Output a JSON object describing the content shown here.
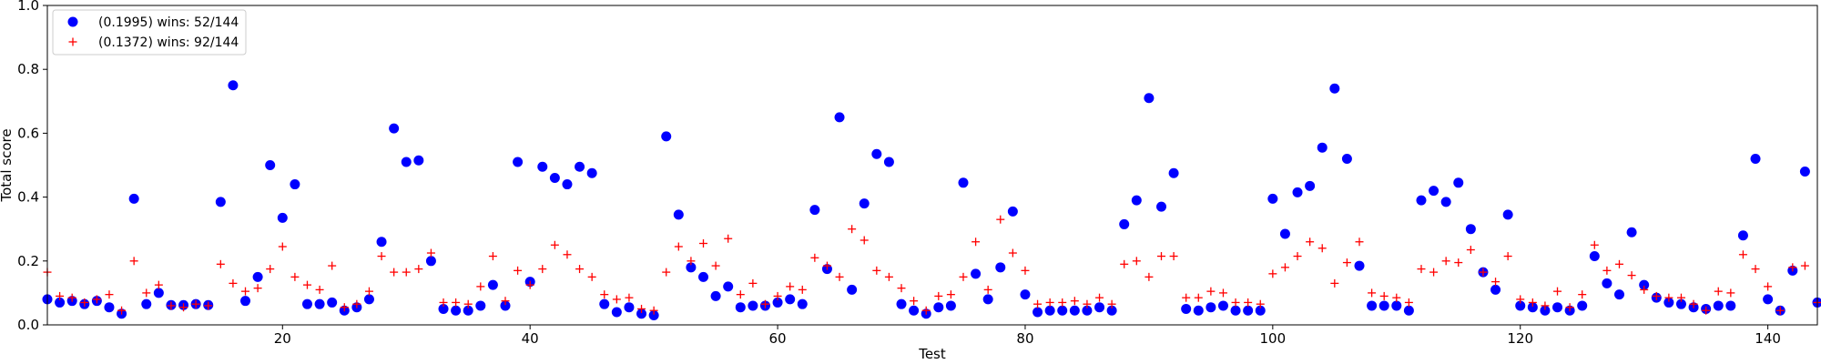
{
  "chart_data": {
    "type": "scatter",
    "title": "",
    "xlabel": "Test",
    "ylabel": "Total score",
    "xlim": [
      1,
      144
    ],
    "ylim": [
      0,
      1.0
    ],
    "xticks": [
      20,
      40,
      60,
      80,
      100,
      120,
      140
    ],
    "yticks": [
      0.0,
      0.2,
      0.4,
      0.6,
      0.8,
      1.0
    ],
    "ytick_labels": [
      "0.0",
      "0.2",
      "0.4",
      "0.6",
      "0.8",
      "1.0"
    ],
    "grid": false,
    "legend_position": "top-left",
    "series": [
      {
        "name": "(0.1995) wins: 52/144",
        "marker": "circle",
        "color": "#0000ff",
        "x": [
          1,
          2,
          3,
          4,
          5,
          6,
          7,
          8,
          9,
          10,
          11,
          12,
          13,
          14,
          15,
          16,
          17,
          18,
          19,
          20,
          21,
          22,
          23,
          24,
          25,
          26,
          27,
          28,
          29,
          30,
          31,
          32,
          33,
          34,
          35,
          36,
          37,
          38,
          39,
          40,
          41,
          42,
          43,
          44,
          45,
          46,
          47,
          48,
          49,
          50,
          51,
          52,
          53,
          54,
          55,
          56,
          57,
          58,
          59,
          60,
          61,
          62,
          63,
          64,
          65,
          66,
          67,
          68,
          69,
          70,
          71,
          72,
          73,
          74,
          75,
          76,
          77,
          78,
          79,
          80,
          81,
          82,
          83,
          84,
          85,
          86,
          87,
          88,
          89,
          90,
          91,
          92,
          93,
          94,
          95,
          96,
          97,
          98,
          99,
          100,
          101,
          102,
          103,
          104,
          105,
          106,
          107,
          108,
          109,
          110,
          111,
          112,
          113,
          114,
          115,
          116,
          117,
          118,
          119,
          120,
          121,
          122,
          123,
          124,
          125,
          126,
          127,
          128,
          129,
          130,
          131,
          132,
          133,
          134,
          135,
          136,
          137,
          138,
          139,
          140,
          141,
          142,
          143,
          144
        ],
        "y": [
          0.08,
          0.07,
          0.075,
          0.065,
          0.075,
          0.055,
          0.035,
          0.395,
          0.065,
          0.1,
          0.062,
          0.062,
          0.065,
          0.062,
          0.385,
          0.75,
          0.075,
          0.15,
          0.5,
          0.335,
          0.44,
          0.065,
          0.065,
          0.07,
          0.045,
          0.055,
          0.08,
          0.26,
          0.615,
          0.51,
          0.515,
          0.2,
          0.05,
          0.045,
          0.045,
          0.06,
          0.125,
          0.06,
          0.51,
          0.135,
          0.495,
          0.46,
          0.44,
          0.495,
          0.475,
          0.065,
          0.04,
          0.055,
          0.035,
          0.03,
          0.59,
          0.345,
          0.18,
          0.15,
          0.09,
          0.12,
          0.055,
          0.06,
          0.06,
          0.07,
          0.08,
          0.065,
          0.36,
          0.175,
          0.65,
          0.11,
          0.38,
          0.535,
          0.51,
          0.065,
          0.045,
          0.035,
          0.055,
          0.06,
          0.445,
          0.16,
          0.08,
          0.18,
          0.355,
          0.095,
          0.04,
          0.045,
          0.045,
          0.045,
          0.045,
          0.055,
          0.045,
          0.315,
          0.39,
          0.71,
          0.37,
          0.475,
          0.05,
          0.045,
          0.055,
          0.06,
          0.045,
          0.045,
          0.045,
          0.395,
          0.285,
          0.415,
          0.435,
          0.555,
          0.74,
          0.52,
          0.185,
          0.06,
          0.06,
          0.06,
          0.045,
          0.39,
          0.42,
          0.385,
          0.445,
          0.3,
          0.165,
          0.11,
          0.345,
          0.06,
          0.055,
          0.045,
          0.055,
          0.045,
          0.06,
          0.215,
          0.13,
          0.095,
          0.29,
          0.125,
          0.085,
          0.07,
          0.065,
          0.055,
          0.05,
          0.06,
          0.06,
          0.28,
          0.52,
          0.08,
          0.045,
          0.17,
          0.48,
          0.07
        ]
      },
      {
        "name": "(0.1372) wins: 92/144",
        "marker": "plus",
        "color": "#ff0000",
        "x": [
          1,
          2,
          3,
          4,
          5,
          6,
          7,
          8,
          9,
          10,
          11,
          12,
          13,
          14,
          15,
          16,
          17,
          18,
          19,
          20,
          21,
          22,
          23,
          24,
          25,
          26,
          27,
          28,
          29,
          30,
          31,
          32,
          33,
          34,
          35,
          36,
          37,
          38,
          39,
          40,
          41,
          42,
          43,
          44,
          45,
          46,
          47,
          48,
          49,
          50,
          51,
          52,
          53,
          54,
          55,
          56,
          57,
          58,
          59,
          60,
          61,
          62,
          63,
          64,
          65,
          66,
          67,
          68,
          69,
          70,
          71,
          72,
          73,
          74,
          75,
          76,
          77,
          78,
          79,
          80,
          81,
          82,
          83,
          84,
          85,
          86,
          87,
          88,
          89,
          90,
          91,
          92,
          93,
          94,
          95,
          96,
          97,
          98,
          99,
          100,
          101,
          102,
          103,
          104,
          105,
          106,
          107,
          108,
          109,
          110,
          111,
          112,
          113,
          114,
          115,
          116,
          117,
          118,
          119,
          120,
          121,
          122,
          123,
          124,
          125,
          126,
          127,
          128,
          129,
          130,
          131,
          132,
          133,
          134,
          135,
          136,
          137,
          138,
          139,
          140,
          141,
          142,
          143,
          144
        ],
        "y": [
          0.165,
          0.09,
          0.085,
          0.07,
          0.08,
          0.095,
          0.045,
          0.2,
          0.1,
          0.125,
          0.06,
          0.055,
          0.065,
          0.06,
          0.19,
          0.13,
          0.105,
          0.115,
          0.175,
          0.245,
          0.15,
          0.125,
          0.11,
          0.185,
          0.055,
          0.065,
          0.105,
          0.215,
          0.165,
          0.165,
          0.175,
          0.225,
          0.07,
          0.07,
          0.065,
          0.12,
          0.215,
          0.075,
          0.17,
          0.125,
          0.175,
          0.25,
          0.22,
          0.175,
          0.15,
          0.095,
          0.08,
          0.085,
          0.05,
          0.045,
          0.165,
          0.245,
          0.2,
          0.255,
          0.185,
          0.27,
          0.095,
          0.13,
          0.065,
          0.09,
          0.12,
          0.11,
          0.21,
          0.185,
          0.15,
          0.3,
          0.265,
          0.17,
          0.15,
          0.115,
          0.075,
          0.045,
          0.09,
          0.095,
          0.15,
          0.26,
          0.11,
          0.33,
          0.225,
          0.17,
          0.065,
          0.07,
          0.07,
          0.075,
          0.065,
          0.085,
          0.065,
          0.19,
          0.2,
          0.15,
          0.215,
          0.215,
          0.085,
          0.085,
          0.105,
          0.1,
          0.07,
          0.07,
          0.065,
          0.16,
          0.18,
          0.215,
          0.26,
          0.24,
          0.13,
          0.195,
          0.26,
          0.1,
          0.09,
          0.085,
          0.07,
          0.175,
          0.165,
          0.2,
          0.195,
          0.235,
          0.165,
          0.135,
          0.215,
          0.08,
          0.07,
          0.06,
          0.105,
          0.055,
          0.095,
          0.25,
          0.17,
          0.19,
          0.155,
          0.11,
          0.09,
          0.085,
          0.085,
          0.065,
          0.045,
          0.105,
          0.1,
          0.22,
          0.175,
          0.12,
          0.045,
          0.18,
          0.185,
          0.07
        ]
      }
    ]
  }
}
